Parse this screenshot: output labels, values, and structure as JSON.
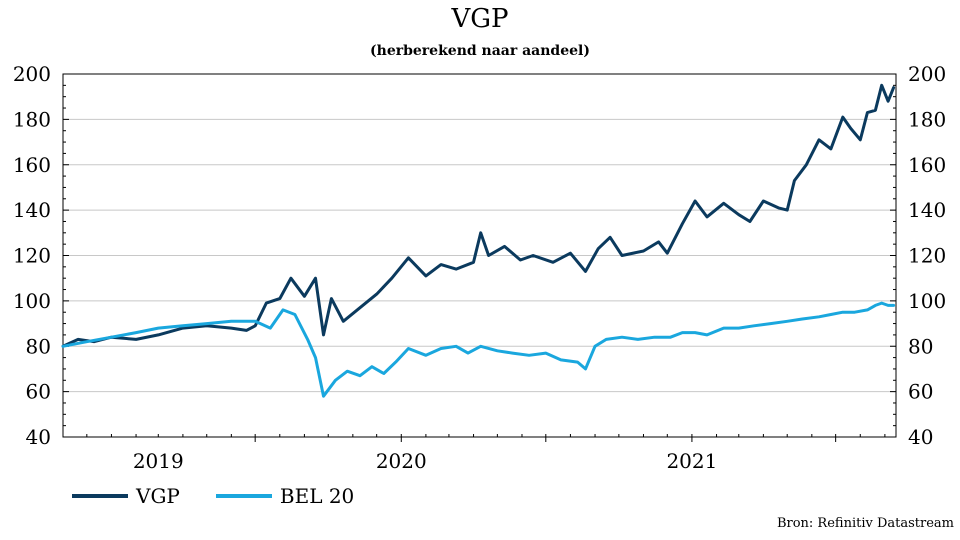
{
  "chart_data": {
    "type": "line",
    "title": "VGP",
    "subtitle": "(herberekend naar aandeel)",
    "source": "Bron: Refinitiv Datastream",
    "xlabel": "",
    "ylabel": "",
    "ylim": [
      40,
      200
    ],
    "yticks": [
      40,
      60,
      80,
      100,
      120,
      140,
      160,
      180,
      200
    ],
    "grid": true,
    "legend_position": "bottom-left",
    "x_tick_labels": [
      "2019",
      "2020",
      "2021"
    ],
    "xlim": [
      "2018-11-01",
      "2021-09-15"
    ],
    "series": [
      {
        "name": "VGP",
        "color": "#0b3a5e",
        "points": [
          [
            "2018-11-01",
            80
          ],
          [
            "2018-11-20",
            83
          ],
          [
            "2018-12-10",
            82
          ],
          [
            "2019-01-01",
            84
          ],
          [
            "2019-02-01",
            83
          ],
          [
            "2019-03-01",
            85
          ],
          [
            "2019-04-01",
            88
          ],
          [
            "2019-05-01",
            89
          ],
          [
            "2019-06-01",
            88
          ],
          [
            "2019-06-20",
            87
          ],
          [
            "2019-07-01",
            89
          ],
          [
            "2019-07-15",
            99
          ],
          [
            "2019-08-01",
            101
          ],
          [
            "2019-08-15",
            110
          ],
          [
            "2019-09-01",
            102
          ],
          [
            "2019-09-15",
            110
          ],
          [
            "2019-09-25",
            85
          ],
          [
            "2019-10-05",
            101
          ],
          [
            "2019-10-20",
            91
          ],
          [
            "2019-11-10",
            97
          ],
          [
            "2019-12-01",
            103
          ],
          [
            "2019-12-20",
            110
          ],
          [
            "2020-01-10",
            119
          ],
          [
            "2020-02-01",
            111
          ],
          [
            "2020-02-20",
            116
          ],
          [
            "2020-03-10",
            114
          ],
          [
            "2020-04-01",
            117
          ],
          [
            "2020-04-10",
            130
          ],
          [
            "2020-04-20",
            120
          ],
          [
            "2020-05-10",
            124
          ],
          [
            "2020-05-30",
            118
          ],
          [
            "2020-06-15",
            120
          ],
          [
            "2020-07-10",
            117
          ],
          [
            "2020-08-01",
            121
          ],
          [
            "2020-08-20",
            113
          ],
          [
            "2020-09-05",
            123
          ],
          [
            "2020-09-20",
            128
          ],
          [
            "2020-10-05",
            120
          ],
          [
            "2020-11-01",
            122
          ],
          [
            "2020-11-20",
            126
          ],
          [
            "2020-12-01",
            121
          ],
          [
            "2020-12-20",
            134
          ],
          [
            "2021-01-05",
            144
          ],
          [
            "2021-01-20",
            137
          ],
          [
            "2021-02-10",
            143
          ],
          [
            "2021-03-01",
            138
          ],
          [
            "2021-03-15",
            135
          ],
          [
            "2021-04-01",
            144
          ],
          [
            "2021-04-20",
            141
          ],
          [
            "2021-05-01",
            140
          ],
          [
            "2021-05-10",
            153
          ],
          [
            "2021-05-25",
            160
          ],
          [
            "2021-06-10",
            171
          ],
          [
            "2021-06-25",
            167
          ],
          [
            "2021-07-10",
            181
          ],
          [
            "2021-07-20",
            176
          ],
          [
            "2021-08-01",
            171
          ],
          [
            "2021-08-10",
            183
          ],
          [
            "2021-08-20",
            184
          ],
          [
            "2021-08-28",
            195
          ],
          [
            "2021-09-05",
            188
          ],
          [
            "2021-09-12",
            194
          ]
        ]
      },
      {
        "name": "BEL 20",
        "color": "#1aa7de",
        "points": [
          [
            "2018-11-01",
            80
          ],
          [
            "2018-12-01",
            82
          ],
          [
            "2019-01-01",
            84
          ],
          [
            "2019-02-01",
            86
          ],
          [
            "2019-03-01",
            88
          ],
          [
            "2019-04-01",
            89
          ],
          [
            "2019-05-01",
            90
          ],
          [
            "2019-06-01",
            91
          ],
          [
            "2019-07-01",
            91
          ],
          [
            "2019-07-20",
            88
          ],
          [
            "2019-08-05",
            96
          ],
          [
            "2019-08-20",
            94
          ],
          [
            "2019-09-05",
            83
          ],
          [
            "2019-09-15",
            75
          ],
          [
            "2019-09-25",
            58
          ],
          [
            "2019-10-10",
            65
          ],
          [
            "2019-10-25",
            69
          ],
          [
            "2019-11-10",
            67
          ],
          [
            "2019-11-25",
            71
          ],
          [
            "2019-12-10",
            68
          ],
          [
            "2019-12-25",
            73
          ],
          [
            "2020-01-10",
            79
          ],
          [
            "2020-02-01",
            76
          ],
          [
            "2020-02-20",
            79
          ],
          [
            "2020-03-10",
            80
          ],
          [
            "2020-03-25",
            77
          ],
          [
            "2020-04-10",
            80
          ],
          [
            "2020-05-01",
            78
          ],
          [
            "2020-05-20",
            77
          ],
          [
            "2020-06-10",
            76
          ],
          [
            "2020-07-01",
            77
          ],
          [
            "2020-07-20",
            74
          ],
          [
            "2020-08-10",
            73
          ],
          [
            "2020-08-20",
            70
          ],
          [
            "2020-09-01",
            80
          ],
          [
            "2020-09-15",
            83
          ],
          [
            "2020-10-05",
            84
          ],
          [
            "2020-10-25",
            83
          ],
          [
            "2020-11-15",
            84
          ],
          [
            "2020-12-05",
            84
          ],
          [
            "2020-12-20",
            86
          ],
          [
            "2021-01-05",
            86
          ],
          [
            "2021-01-20",
            85
          ],
          [
            "2021-02-10",
            88
          ],
          [
            "2021-03-01",
            88
          ],
          [
            "2021-03-20",
            89
          ],
          [
            "2021-04-10",
            90
          ],
          [
            "2021-05-01",
            91
          ],
          [
            "2021-05-20",
            92
          ],
          [
            "2021-06-10",
            93
          ],
          [
            "2021-06-25",
            94
          ],
          [
            "2021-07-10",
            95
          ],
          [
            "2021-07-25",
            95
          ],
          [
            "2021-08-10",
            96
          ],
          [
            "2021-08-20",
            98
          ],
          [
            "2021-08-28",
            99
          ],
          [
            "2021-09-05",
            98
          ],
          [
            "2021-09-12",
            98
          ]
        ]
      }
    ]
  }
}
